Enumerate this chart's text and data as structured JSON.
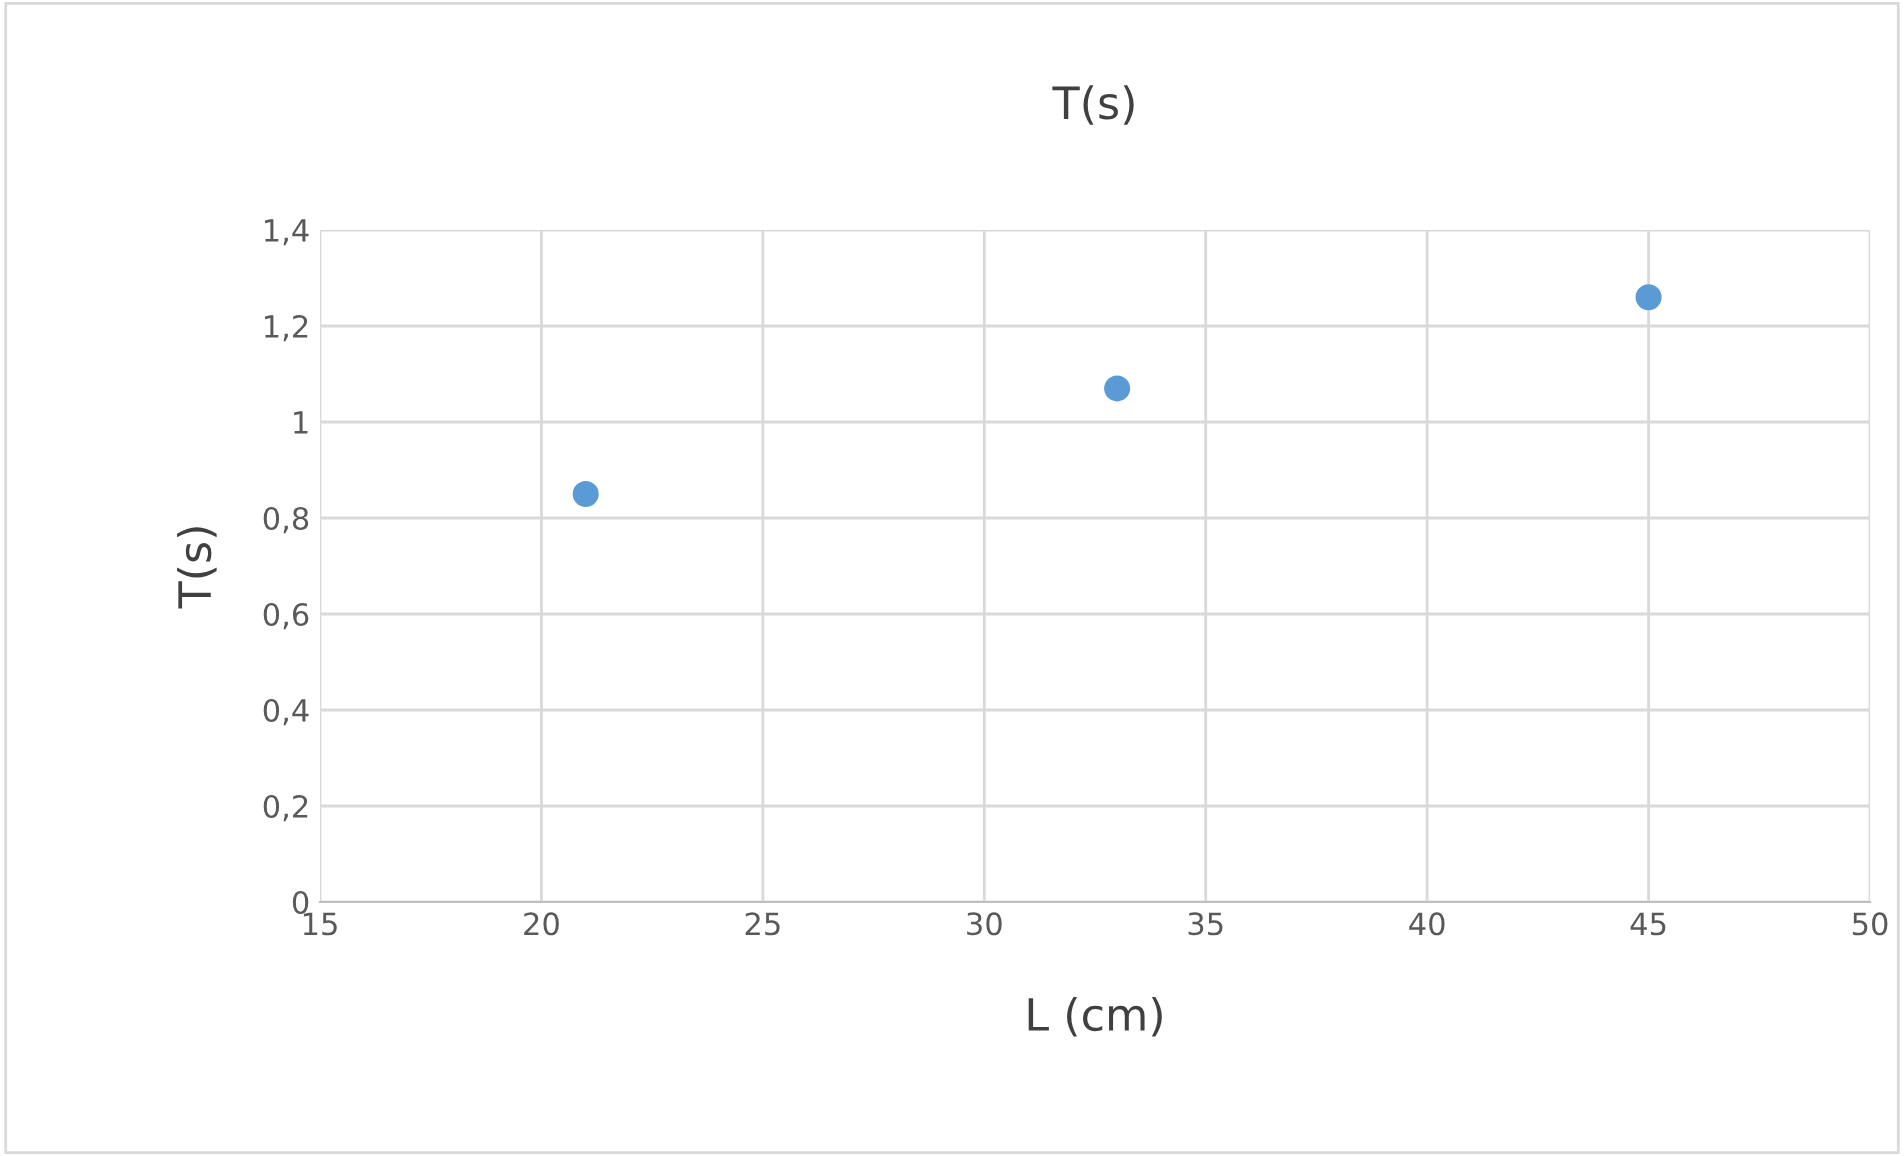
{
  "chart_data": {
    "type": "scatter",
    "title": "T(s)",
    "xlabel": "L (cm)",
    "ylabel": "T(s)",
    "x": [
      21,
      33,
      45
    ],
    "series": [
      {
        "color": "#5b9bd5",
        "values": [
          0.85,
          1.07,
          1.26
        ]
      }
    ],
    "xlim": [
      15,
      50
    ],
    "xticks": [
      15,
      20,
      25,
      30,
      35,
      40,
      45,
      50
    ],
    "ylim": [
      0,
      1.4
    ],
    "yticks": [
      0,
      {
        "value": 0.2,
        "label": "0,2"
      },
      {
        "value": 0.4,
        "label": "0,4"
      },
      {
        "value": 0.6,
        "label": "0,6"
      },
      {
        "value": 0.8,
        "label": "0,8"
      },
      1,
      {
        "value": 1.2,
        "label": "1,2"
      },
      {
        "value": 1.4,
        "label": "1,4"
      }
    ],
    "grid": true,
    "marker": "circle"
  }
}
